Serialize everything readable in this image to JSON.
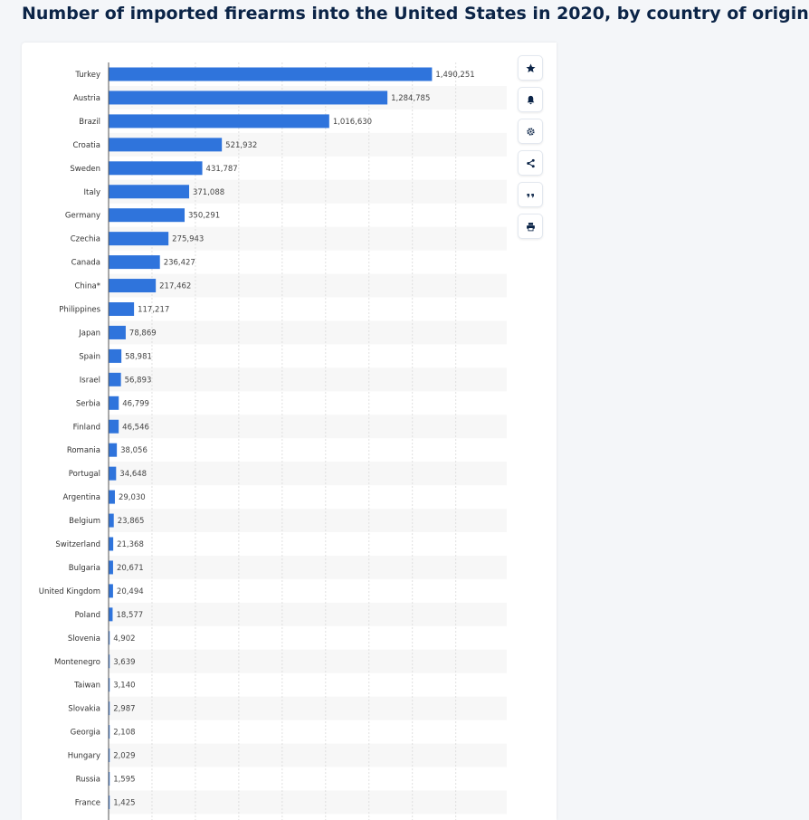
{
  "page": {
    "title": "Number of imported firearms into the United States in 2020, by country of origin"
  },
  "toolbar": {
    "icons": [
      "star-icon",
      "bell-icon",
      "gear-icon",
      "share-icon",
      "quote-icon",
      "print-icon"
    ]
  },
  "colors": {
    "bar": "#2f74dc",
    "accent": "#0b2447"
  },
  "chart_data": {
    "type": "bar",
    "orientation": "horizontal",
    "categories": [
      "Turkey",
      "Austria",
      "Brazil",
      "Croatia",
      "Sweden",
      "Italy",
      "Germany",
      "Czechia",
      "Canada",
      "China*",
      "Philippines",
      "Japan",
      "Spain",
      "Israel",
      "Serbia",
      "Finland",
      "Romania",
      "Portugal",
      "Argentina",
      "Belgium",
      "Switzerland",
      "Bulgaria",
      "United Kingdom",
      "Poland",
      "Slovenia",
      "Montenegro",
      "Taiwan",
      "Slovakia",
      "Georgia",
      "Hungary",
      "Russia",
      "France"
    ],
    "values": [
      1490251,
      1284785,
      1016630,
      521932,
      431787,
      371088,
      350291,
      275943,
      236427,
      217462,
      117217,
      78869,
      58981,
      56893,
      46799,
      46546,
      38056,
      34648,
      29030,
      23865,
      21368,
      20671,
      20494,
      18577,
      4902,
      3639,
      3140,
      2987,
      2108,
      2029,
      1595,
      1425
    ],
    "value_labels": [
      "1,490,251",
      "1,284,785",
      "1,016,630",
      "521,932",
      "431,787",
      "371,088",
      "350,291",
      "275,943",
      "236,427",
      "217,462",
      "117,217",
      "78,869",
      "58,981",
      "56,893",
      "46,799",
      "46,546",
      "38,056",
      "34,648",
      "29,030",
      "23,865",
      "21,368",
      "20,671",
      "20,494",
      "18,577",
      "4,902",
      "3,639",
      "3,140",
      "2,987",
      "2,108",
      "2,029",
      "1,595",
      "1,425"
    ],
    "xlim": [
      0,
      1600000
    ],
    "grid": true
  }
}
